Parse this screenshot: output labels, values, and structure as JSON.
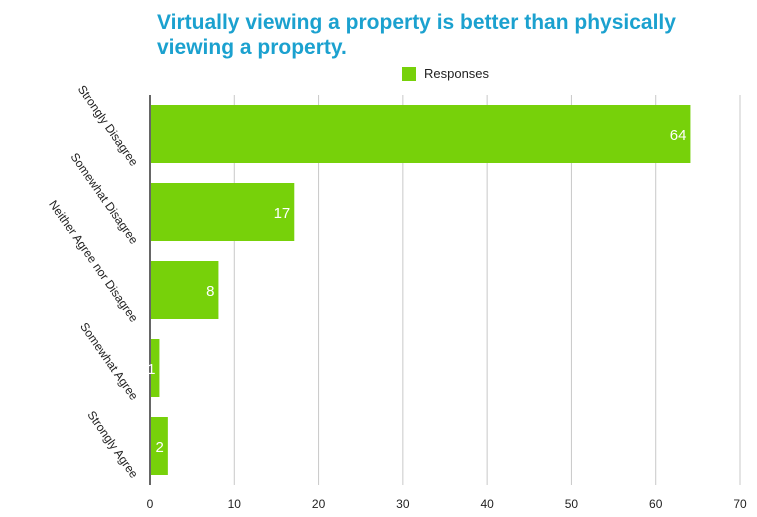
{
  "chart_data": {
    "type": "bar",
    "orientation": "horizontal",
    "title": "Virtually viewing a property is better than physically viewing a property.",
    "categories": [
      "Strongly Disagree",
      "Somewhat Disagree",
      "Neither Agree nor Disagree",
      "Somewhat Agree",
      "Strongly Agree"
    ],
    "series": [
      {
        "name": "Responses",
        "values": [
          64,
          17,
          8,
          1,
          2
        ],
        "color": "#77d10a"
      }
    ],
    "xlim": [
      0,
      70
    ],
    "xticks": [
      0,
      10,
      20,
      30,
      40,
      50,
      60,
      70
    ],
    "grid": true,
    "legend": "top",
    "data_labels": true
  }
}
